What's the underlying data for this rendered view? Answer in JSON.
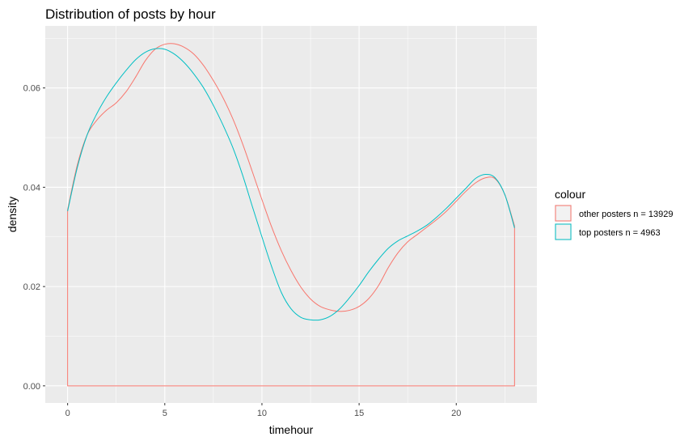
{
  "chart_data": {
    "type": "line",
    "title": "Distribution of posts by hour",
    "xlabel": "timehour",
    "ylabel": "density",
    "xlim": [
      -1.15,
      24.15
    ],
    "ylim": [
      -0.00345,
      0.0725
    ],
    "x_ticks": [
      0,
      5,
      10,
      15,
      20
    ],
    "x_tick_labels": [
      "0",
      "5",
      "10",
      "15",
      "20"
    ],
    "y_ticks": [
      0,
      0.02,
      0.04,
      0.06
    ],
    "y_tick_labels": [
      "0.00",
      "0.02",
      "0.04",
      "0.06"
    ],
    "grid": true,
    "legend_position": "right",
    "legend_title": "colour",
    "series": [
      {
        "name": "other posters n = 13929",
        "color": "#F8766D",
        "closed_to_baseline": true,
        "x": [
          0,
          0.5,
          1,
          1.5,
          2,
          2.5,
          3,
          3.5,
          4,
          4.5,
          5,
          5.5,
          6,
          6.5,
          7,
          7.5,
          8,
          8.5,
          9,
          9.5,
          10,
          10.5,
          11,
          11.5,
          12,
          12.5,
          13,
          13.5,
          14,
          14.5,
          15,
          15.5,
          16,
          16.5,
          17,
          17.5,
          18,
          18.5,
          19,
          19.5,
          20,
          20.5,
          21,
          21.5,
          22,
          22.5,
          23
        ],
        "y": [
          0.0355,
          0.0445,
          0.0505,
          0.0535,
          0.0555,
          0.057,
          0.0592,
          0.0622,
          0.0655,
          0.0678,
          0.0688,
          0.0689,
          0.0682,
          0.0668,
          0.0645,
          0.0615,
          0.058,
          0.0538,
          0.0488,
          0.0432,
          0.0375,
          0.032,
          0.0272,
          0.0232,
          0.0199,
          0.0175,
          0.016,
          0.0153,
          0.015,
          0.0152,
          0.016,
          0.0176,
          0.0202,
          0.0238,
          0.0268,
          0.029,
          0.0305,
          0.032,
          0.0335,
          0.0352,
          0.0372,
          0.0392,
          0.0409,
          0.0419,
          0.0417,
          0.0385,
          0.0322
        ]
      },
      {
        "name": "top posters n = 4963",
        "color": "#00BFC4",
        "closed_to_baseline": false,
        "x": [
          0,
          0.5,
          1,
          1.5,
          2,
          2.5,
          3,
          3.5,
          4,
          4.5,
          5,
          5.5,
          6,
          6.5,
          7,
          7.5,
          8,
          8.5,
          9,
          9.5,
          10,
          10.5,
          11,
          11.5,
          12,
          12.5,
          13,
          13.5,
          14,
          14.5,
          15,
          15.5,
          16,
          16.5,
          17,
          17.5,
          18,
          18.5,
          19,
          19.5,
          20,
          20.5,
          21,
          21.5,
          22,
          22.5,
          23
        ],
        "y": [
          0.0352,
          0.044,
          0.0505,
          0.0548,
          0.0582,
          0.061,
          0.0635,
          0.0657,
          0.0672,
          0.0679,
          0.0678,
          0.0668,
          0.0651,
          0.0628,
          0.06,
          0.0565,
          0.0525,
          0.048,
          0.0425,
          0.0362,
          0.03,
          0.024,
          0.0188,
          0.0155,
          0.0138,
          0.0133,
          0.0133,
          0.014,
          0.0155,
          0.0177,
          0.0202,
          0.023,
          0.0255,
          0.0277,
          0.0292,
          0.0302,
          0.0312,
          0.0324,
          0.034,
          0.0358,
          0.0378,
          0.0398,
          0.0418,
          0.0426,
          0.0419,
          0.0385,
          0.0318
        ]
      }
    ]
  }
}
